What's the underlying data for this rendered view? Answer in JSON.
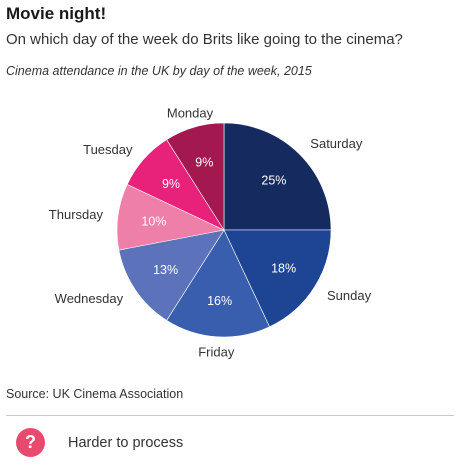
{
  "header": {
    "title": "Movie night!",
    "subtitle": "On which day of the week do Brits like going to the cinema?",
    "caption": "Cinema attendance in the UK by day of the week, 2015"
  },
  "chart_data": {
    "type": "pie",
    "title": "Cinema attendance in the UK by day of the week, 2015",
    "slices": [
      {
        "label": "Saturday",
        "value": 25,
        "value_label": "25%",
        "color": "#152a5e"
      },
      {
        "label": "Sunday",
        "value": 18,
        "value_label": "18%",
        "color": "#1d4593"
      },
      {
        "label": "Friday",
        "value": 16,
        "value_label": "16%",
        "color": "#395eae"
      },
      {
        "label": "Wednesday",
        "value": 13,
        "value_label": "13%",
        "color": "#5c73bb"
      },
      {
        "label": "Thursday",
        "value": 10,
        "value_label": "10%",
        "color": "#ee7fa9"
      },
      {
        "label": "Tuesday",
        "value": 9,
        "value_label": "9%",
        "color": "#e8217a"
      },
      {
        "label": "Monday",
        "value": 9,
        "value_label": "9%",
        "color": "#a3184f"
      }
    ],
    "start": "12 o'clock",
    "direction": "clockwise",
    "legend": "none"
  },
  "source": "Source: UK Cinema Association",
  "footer": {
    "icon": "question-mark-icon",
    "icon_glyph": "?",
    "icon_color": "#e84a6f",
    "label": "Harder to process"
  }
}
